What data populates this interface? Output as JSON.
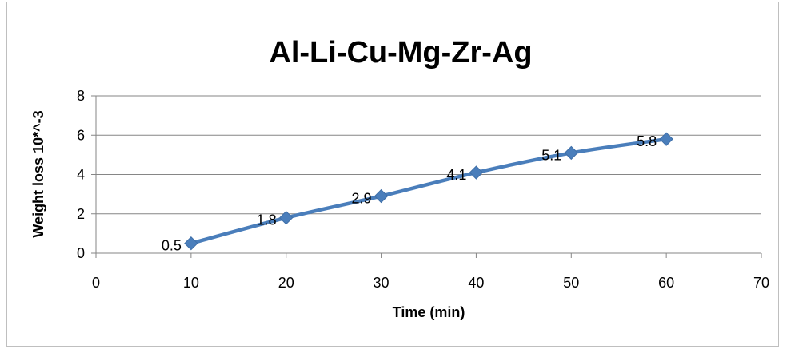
{
  "chart_data": {
    "type": "line",
    "title": "Al-Li-Cu-Mg-Zr-Ag",
    "xlabel": "Time (min)",
    "ylabel": "Weight loss 10*^-3",
    "xlim": [
      0,
      70
    ],
    "ylim": [
      0,
      8
    ],
    "x_ticks": [
      0,
      10,
      20,
      30,
      40,
      50,
      60,
      70
    ],
    "y_ticks": [
      0,
      2,
      4,
      6,
      8
    ],
    "grid": "horizontal",
    "legend": "none",
    "series": [
      {
        "color": "#4a7ebb",
        "marker": "diamond",
        "smooth": true,
        "x": [
          10,
          20,
          30,
          40,
          50,
          60
        ],
        "y": [
          0.5,
          1.8,
          2.9,
          4.1,
          5.1,
          5.8
        ],
        "labels": [
          "0.5",
          "1.8",
          "2.9",
          "4.1",
          "5.1",
          "5.8"
        ]
      }
    ]
  }
}
